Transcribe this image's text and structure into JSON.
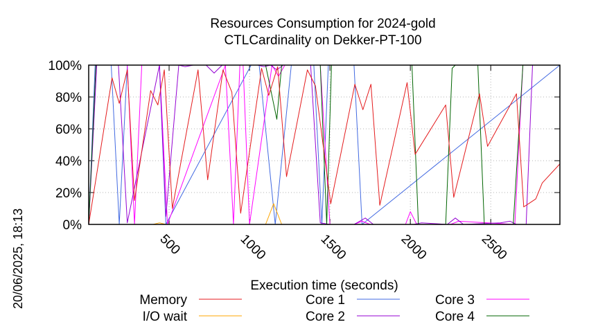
{
  "page": {
    "timestamp": "20/06/2025, 18:13"
  },
  "chart_data": {
    "type": "line",
    "title": "Resources Consumption for 2024-gold",
    "subtitle": "CTLCardinality on Dekker-PT-100",
    "xlabel": "Execution time (seconds)",
    "ylabel": "",
    "xlim": [
      0,
      2930
    ],
    "ylim": [
      0,
      100
    ],
    "x_ticks": [
      500,
      1000,
      1500,
      2000,
      2500
    ],
    "x_tick_labels": [
      "500",
      "1000",
      "1500",
      "2000",
      "2500"
    ],
    "y_ticks": [
      0,
      20,
      40,
      60,
      80,
      100
    ],
    "y_tick_labels": [
      "0%",
      "20%",
      "40%",
      "60%",
      "80%",
      "100%"
    ],
    "grid": true,
    "legend_position": "bottom",
    "series": [
      {
        "name": "Memory",
        "color": "#e41a1c",
        "x": [
          0,
          145,
          190,
          240,
          285,
          385,
          430,
          470,
          520,
          680,
          740,
          835,
          890,
          945,
          1075,
          1120,
          1175,
          1230,
          1360,
          1410,
          1505,
          1655,
          1705,
          1755,
          1810,
          1980,
          2030,
          2220,
          2270,
          2430,
          2480,
          2660,
          2705,
          2780,
          2820,
          2930
        ],
        "values": [
          0,
          92,
          76,
          97,
          15,
          84,
          75,
          97,
          10,
          97,
          28,
          97,
          83,
          7,
          98,
          81,
          99,
          30,
          97,
          87,
          13,
          88,
          72,
          88,
          12,
          89,
          44,
          75,
          17,
          82,
          49,
          82,
          11,
          16,
          26,
          38
        ]
      },
      {
        "name": "I/O wait",
        "color": "#ffa500",
        "x": [
          0,
          400,
          440,
          480,
          1100,
          1150,
          1200,
          1250,
          2930
        ],
        "values": [
          0,
          0,
          1,
          0,
          0,
          13,
          0,
          0,
          0
        ]
      },
      {
        "name": "Core 1",
        "color": "#4169e1",
        "x": [
          0,
          40,
          140,
          190,
          240,
          440,
          480,
          1010,
          1060,
          1160,
          1260,
          1400,
          1450,
          1490,
          1650,
          1700,
          2930
        ],
        "values": [
          0,
          100,
          100,
          0,
          100,
          100,
          0,
          100,
          100,
          0,
          100,
          100,
          0,
          100,
          100,
          0,
          100
        ]
      },
      {
        "name": "Core 2",
        "color": "#9400d3",
        "x": [
          0,
          50,
          185,
          240,
          440,
          480,
          560,
          600,
          650,
          730,
          780,
          830,
          1050,
          1090,
          1130,
          1170,
          1210,
          1300,
          1380,
          1440,
          1500,
          1650,
          1720,
          1770,
          1820,
          2020,
          2070,
          2230,
          2280,
          2330,
          2560,
          2620,
          2660,
          2720,
          2760,
          2930
        ],
        "values": [
          0,
          100,
          100,
          1,
          100,
          5,
          100,
          99,
          100,
          100,
          95,
          100,
          100,
          99,
          100,
          97,
          100,
          100,
          100,
          1,
          0,
          0,
          4,
          0,
          0,
          0,
          1,
          0,
          4,
          0,
          1,
          2,
          0,
          0,
          100,
          100
        ]
      },
      {
        "name": "Core 3",
        "color": "#ff00ff",
        "x": [
          0,
          45,
          240,
          285,
          330,
          440,
          490,
          850,
          900,
          940,
          960,
          1000,
          1140,
          1180,
          1220,
          1290,
          1340,
          1440,
          1500,
          1650,
          1700,
          1750,
          1970,
          2000,
          2040,
          2250,
          2300,
          2650,
          2700,
          2930
        ],
        "values": [
          0,
          100,
          100,
          0,
          100,
          100,
          0,
          100,
          0,
          100,
          100,
          0,
          100,
          93,
          100,
          100,
          100,
          100,
          0,
          0,
          2,
          0,
          0,
          8,
          0,
          0,
          2,
          0,
          100,
          100
        ]
      },
      {
        "name": "Core 4",
        "color": "#006400",
        "x": [
          0,
          45,
          1100,
          1170,
          1200,
          1220,
          1440,
          1480,
          1510,
          1600,
          2010,
          2050,
          2220,
          2260,
          2280,
          2420,
          2460,
          2640,
          2700,
          2930
        ],
        "values": [
          0,
          100,
          100,
          66,
          100,
          100,
          100,
          0,
          100,
          100,
          100,
          0,
          0,
          98,
          100,
          100,
          0,
          0,
          100,
          100
        ]
      }
    ]
  }
}
